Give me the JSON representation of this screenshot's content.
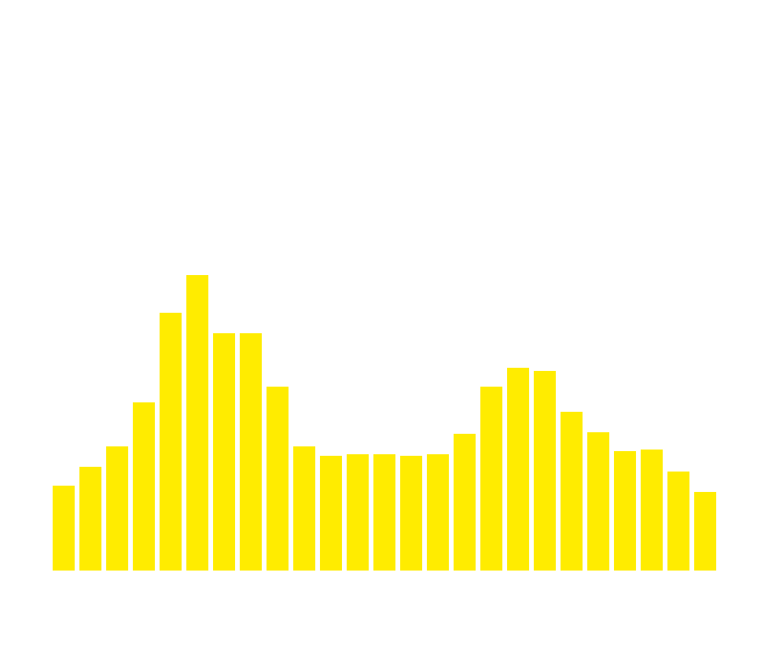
{
  "chart_data": {
    "type": "bar",
    "categories": [
      null,
      null,
      null,
      null,
      null,
      null,
      null,
      null,
      null,
      null,
      null,
      null,
      null,
      null,
      null,
      null,
      null,
      null,
      null,
      null,
      null,
      null,
      null,
      null,
      null
    ],
    "values": [
      108,
      132,
      158,
      214,
      328,
      376,
      302,
      302,
      234,
      158,
      146,
      148,
      148,
      146,
      148,
      174,
      234,
      258,
      254,
      202,
      176,
      152,
      154,
      126,
      100
    ],
    "color": "#ffec00",
    "ylim": [
      0,
      400
    ]
  }
}
